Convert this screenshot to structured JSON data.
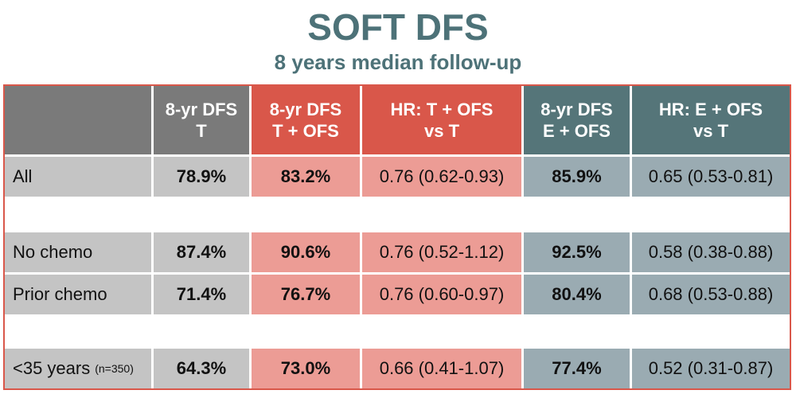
{
  "title": "SOFT DFS",
  "subtitle": "8 years median follow-up",
  "colors": {
    "title": "#4d7278",
    "border": "#d9574a",
    "grey_header": "#7a7a7a",
    "red_header": "#d9574a",
    "teal_header": "#557579",
    "grey_cell": "#c4c4c4",
    "red_cell": "#ec9c95",
    "teal_cell": "#9aabb2"
  },
  "headers": [
    "",
    [
      "8-yr DFS",
      "T"
    ],
    [
      "8-yr DFS",
      "T + OFS"
    ],
    [
      "HR: T + OFS",
      "vs T"
    ],
    [
      "8-yr DFS",
      "E + OFS"
    ],
    [
      "HR: E + OFS",
      "vs T"
    ]
  ],
  "rows": [
    {
      "label": "All",
      "note": "",
      "dfs_t": "78.9%",
      "dfs_t_ofs": "83.2%",
      "hr_t_ofs": "0.76 (0.62-0.93)",
      "dfs_e_ofs": "85.9%",
      "hr_e_ofs": "0.65 (0.53-0.81)"
    },
    {
      "label": "No chemo",
      "note": "",
      "dfs_t": "87.4%",
      "dfs_t_ofs": "90.6%",
      "hr_t_ofs": "0.76 (0.52-1.12)",
      "dfs_e_ofs": "92.5%",
      "hr_e_ofs": "0.58 (0.38-0.88)"
    },
    {
      "label": "Prior chemo",
      "note": "",
      "dfs_t": "71.4%",
      "dfs_t_ofs": "76.7%",
      "hr_t_ofs": "0.76 (0.60-0.97)",
      "dfs_e_ofs": "80.4%",
      "hr_e_ofs": "0.68 (0.53-0.88)"
    },
    {
      "label": "<35 years",
      "note": "(n=350)",
      "dfs_t": "64.3%",
      "dfs_t_ofs": "73.0%",
      "hr_t_ofs": "0.66 (0.41-1.07)",
      "dfs_e_ofs": "77.4%",
      "hr_e_ofs": "0.52 (0.31-0.87)"
    }
  ]
}
